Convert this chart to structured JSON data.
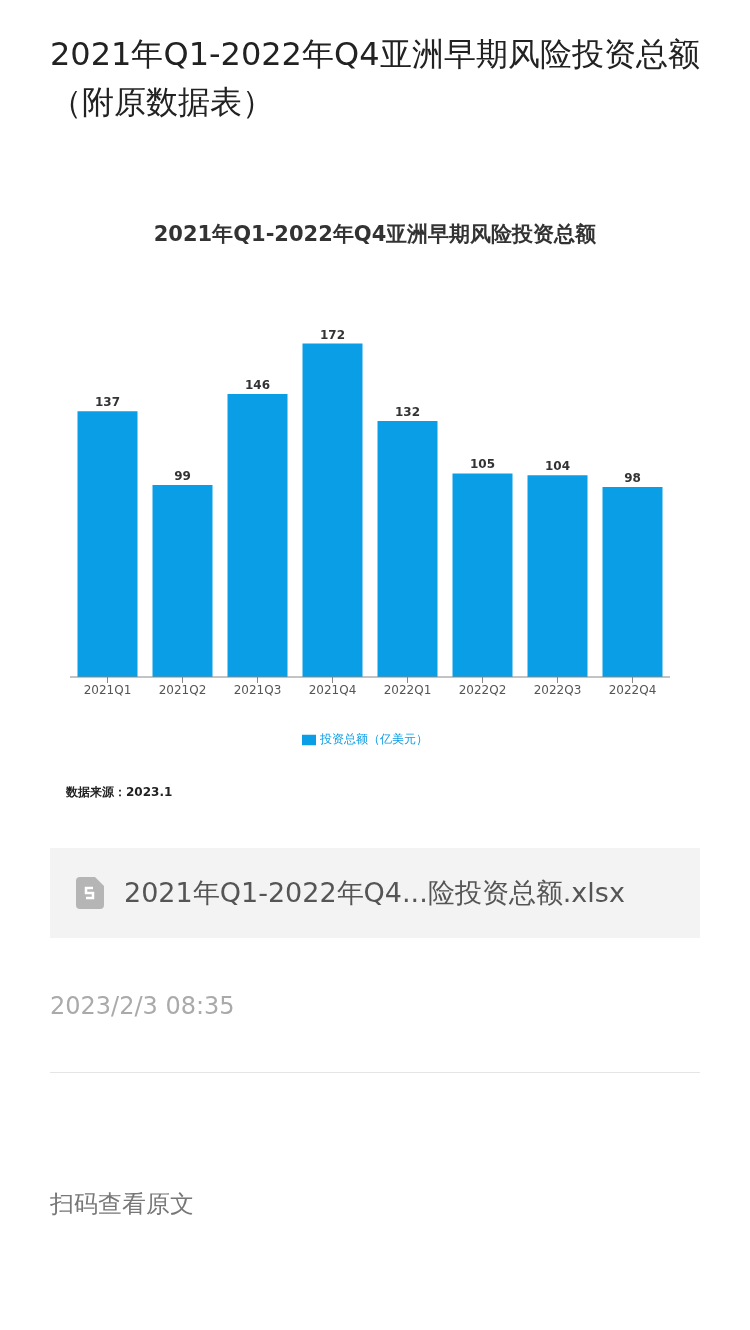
{
  "chart_data": {
    "type": "bar",
    "title": "2021年Q1-2022年Q4亚洲早期风险投资总额（附原数据表）",
    "subtitle": "2021年Q1-2022年Q4亚洲早期风险投资总额",
    "categories": [
      "2021Q1",
      "2021Q2",
      "2021Q3",
      "2021Q4",
      "2022Q1",
      "2022Q2",
      "2022Q3",
      "2022Q4"
    ],
    "series": [
      {
        "name": "投资总额（亿美元）",
        "color": "#0a9ee6",
        "values": [
          137,
          99,
          146,
          172,
          132,
          105,
          104,
          98
        ]
      }
    ],
    "data_labels": true,
    "legend": "bottom",
    "grid": false,
    "annotations": [
      "数据来源：2023.1",
      "2021年Q1-2022年Q4...险投资总额.xlsx",
      "2023/2/3 08:35",
      "扫码查看原文"
    ]
  }
}
